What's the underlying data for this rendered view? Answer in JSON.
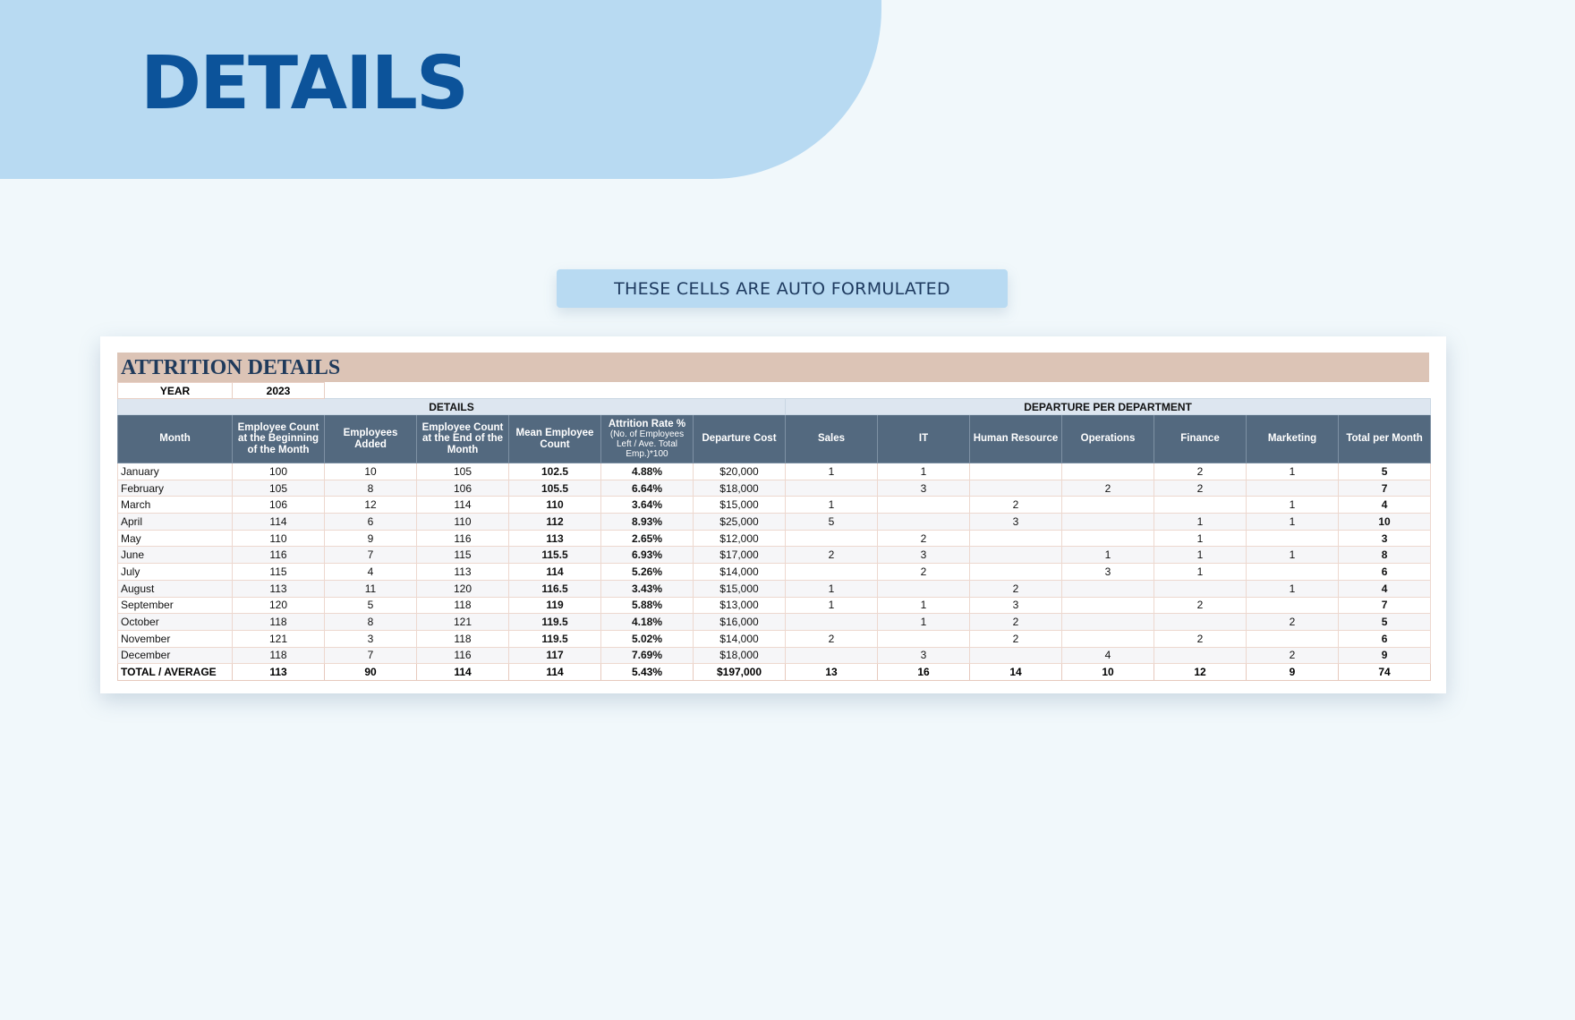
{
  "page": {
    "title": "DETAILS",
    "banner": "THESE CELLS ARE AUTO FORMULATED"
  },
  "sheet": {
    "title": "ATTRITION DETAILS",
    "year_label": "YEAR",
    "year_value": "2023",
    "group_details": "DETAILS",
    "group_departure": "DEPARTURE PER DEPARTMENT",
    "headers": {
      "month": "Month",
      "begin": "Employee Count at the Beginning of the Month",
      "added": "Employees Added",
      "end": "Employee Count at the End of the Month",
      "mean": "Mean Employee Count",
      "rate": "Attrition Rate %",
      "rate_sub": "(No. of Employees Left / Ave. Total Emp.)*100",
      "cost": "Departure Cost",
      "sales": "Sales",
      "it": "IT",
      "hr": "Human Resource",
      "ops": "Operations",
      "fin": "Finance",
      "mkt": "Marketing",
      "total": "Total per Month"
    },
    "rows": [
      {
        "month": "January",
        "begin": "100",
        "added": "10",
        "end": "105",
        "mean": "102.5",
        "rate": "4.88%",
        "cost": "$20,000",
        "sales": "1",
        "it": "1",
        "hr": "",
        "ops": "",
        "fin": "2",
        "mkt": "1",
        "total": "5"
      },
      {
        "month": "February",
        "begin": "105",
        "added": "8",
        "end": "106",
        "mean": "105.5",
        "rate": "6.64%",
        "cost": "$18,000",
        "sales": "",
        "it": "3",
        "hr": "",
        "ops": "2",
        "fin": "2",
        "mkt": "",
        "total": "7"
      },
      {
        "month": "March",
        "begin": "106",
        "added": "12",
        "end": "114",
        "mean": "110",
        "rate": "3.64%",
        "cost": "$15,000",
        "sales": "1",
        "it": "",
        "hr": "2",
        "ops": "",
        "fin": "",
        "mkt": "1",
        "total": "4"
      },
      {
        "month": "April",
        "begin": "114",
        "added": "6",
        "end": "110",
        "mean": "112",
        "rate": "8.93%",
        "cost": "$25,000",
        "sales": "5",
        "it": "",
        "hr": "3",
        "ops": "",
        "fin": "1",
        "mkt": "1",
        "total": "10"
      },
      {
        "month": "May",
        "begin": "110",
        "added": "9",
        "end": "116",
        "mean": "113",
        "rate": "2.65%",
        "cost": "$12,000",
        "sales": "",
        "it": "2",
        "hr": "",
        "ops": "",
        "fin": "1",
        "mkt": "",
        "total": "3"
      },
      {
        "month": "June",
        "begin": "116",
        "added": "7",
        "end": "115",
        "mean": "115.5",
        "rate": "6.93%",
        "cost": "$17,000",
        "sales": "2",
        "it": "3",
        "hr": "",
        "ops": "1",
        "fin": "1",
        "mkt": "1",
        "total": "8"
      },
      {
        "month": "July",
        "begin": "115",
        "added": "4",
        "end": "113",
        "mean": "114",
        "rate": "5.26%",
        "cost": "$14,000",
        "sales": "",
        "it": "2",
        "hr": "",
        "ops": "3",
        "fin": "1",
        "mkt": "",
        "total": "6"
      },
      {
        "month": "August",
        "begin": "113",
        "added": "11",
        "end": "120",
        "mean": "116.5",
        "rate": "3.43%",
        "cost": "$15,000",
        "sales": "1",
        "it": "",
        "hr": "2",
        "ops": "",
        "fin": "",
        "mkt": "1",
        "total": "4"
      },
      {
        "month": "September",
        "begin": "120",
        "added": "5",
        "end": "118",
        "mean": "119",
        "rate": "5.88%",
        "cost": "$13,000",
        "sales": "1",
        "it": "1",
        "hr": "3",
        "ops": "",
        "fin": "2",
        "mkt": "",
        "total": "7"
      },
      {
        "month": "October",
        "begin": "118",
        "added": "8",
        "end": "121",
        "mean": "119.5",
        "rate": "4.18%",
        "cost": "$16,000",
        "sales": "",
        "it": "1",
        "hr": "2",
        "ops": "",
        "fin": "",
        "mkt": "2",
        "total": "5"
      },
      {
        "month": "November",
        "begin": "121",
        "added": "3",
        "end": "118",
        "mean": "119.5",
        "rate": "5.02%",
        "cost": "$14,000",
        "sales": "2",
        "it": "",
        "hr": "2",
        "ops": "",
        "fin": "2",
        "mkt": "",
        "total": "6"
      },
      {
        "month": "December",
        "begin": "118",
        "added": "7",
        "end": "116",
        "mean": "117",
        "rate": "7.69%",
        "cost": "$18,000",
        "sales": "",
        "it": "3",
        "hr": "",
        "ops": "4",
        "fin": "",
        "mkt": "2",
        "total": "9"
      }
    ],
    "totals": {
      "month": "TOTAL / AVERAGE",
      "begin": "113",
      "added": "90",
      "end": "114",
      "mean": "114",
      "rate": "5.43%",
      "cost": "$197,000",
      "sales": "13",
      "it": "16",
      "hr": "14",
      "ops": "10",
      "fin": "12",
      "mkt": "9",
      "total": "74"
    }
  }
}
